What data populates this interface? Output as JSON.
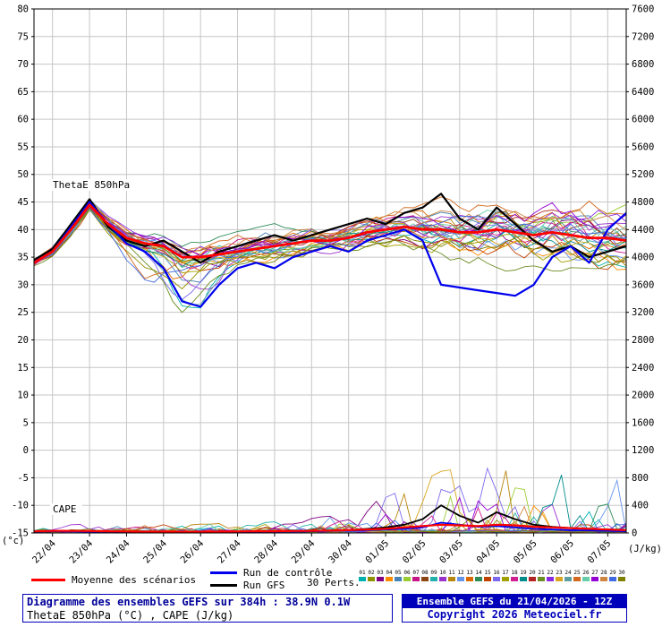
{
  "title_box": {
    "line1": "Diagramme des ensembles GEFS sur 384h : 38.9N 0.1W",
    "line2": "ThetaE 850hPa (°C) , CAPE (J/kg)"
  },
  "info_box": {
    "line1": "Ensemble GEFS du 21/04/2026 - 12Z",
    "line2": "Copyright 2026 Meteociel.fr"
  },
  "legend": {
    "mean_label": "Moyenne des scénarios",
    "control_label": "Run de contrôle",
    "gfs_label": "Run GFS",
    "perts_label": "30 Perts.",
    "member_numbers": [
      "01",
      "02",
      "03",
      "04",
      "05",
      "06",
      "07",
      "08",
      "09",
      "10",
      "11",
      "12",
      "13",
      "14",
      "15",
      "16",
      "17",
      "18",
      "19",
      "20",
      "21",
      "22",
      "23",
      "24",
      "25",
      "26",
      "27",
      "28",
      "29",
      "30"
    ]
  },
  "chart_data": {
    "type": "line",
    "title": "Diagramme des ensembles GEFS sur 384h : 38.9N 0.1W",
    "x_start": "21/04 12Z",
    "x_days_total": 16,
    "time_step_days": 0.5,
    "x_tick_labels": [
      "22/04",
      "23/04",
      "24/04",
      "25/04",
      "26/04",
      "27/04",
      "28/04",
      "29/04",
      "30/04",
      "01/05",
      "02/05",
      "03/05",
      "04/05",
      "05/05",
      "06/05",
      "07/05"
    ],
    "left_axis": {
      "min": -15,
      "max": 80,
      "step": 5,
      "unit": "(°c)",
      "label": "ThetaE 850hPa (°C)"
    },
    "right_axis": {
      "min": 0,
      "max": 7600,
      "step": 400,
      "unit": "(J/kg)",
      "label": "CAPE (J/kg)"
    },
    "annotations": {
      "thetae": "ThetaE 850hPa",
      "cape": "CAPE"
    },
    "grid_color": "#c6c6c6",
    "series_colors": {
      "mean": "#ff0000",
      "control": "#0000ee",
      "gfs": "#000000"
    },
    "series": {
      "mean_thetae": [
        34,
        36,
        40,
        44.5,
        41,
        38.5,
        37.5,
        37,
        35,
        35,
        35.5,
        36,
        36.5,
        37,
        37.5,
        38,
        38,
        38.5,
        39.5,
        40,
        40.5,
        40,
        40,
        39.5,
        39.5,
        40,
        39.5,
        39,
        39.5,
        39,
        38.5,
        38.5,
        38
      ],
      "control_thetae": [
        34,
        36,
        40.5,
        45,
        41,
        37.5,
        36,
        33,
        27,
        26,
        30,
        33,
        34,
        33,
        35,
        36,
        37,
        36,
        38,
        39,
        40,
        38,
        30,
        29.5,
        29,
        28.5,
        28,
        30,
        35,
        37,
        34,
        40,
        43
      ],
      "gfs_thetae": [
        34.5,
        36.5,
        41,
        45.5,
        40.5,
        38,
        37,
        38,
        36,
        34,
        36,
        37,
        38,
        39,
        38,
        39,
        40,
        41,
        42,
        41,
        43,
        44,
        46.5,
        42,
        40,
        44,
        41,
        38,
        36,
        37,
        35,
        36,
        37
      ],
      "mean_cape": [
        25,
        30,
        30,
        28,
        25,
        22,
        20,
        20,
        18,
        18,
        20,
        22,
        25,
        25,
        28,
        30,
        35,
        40,
        50,
        60,
        80,
        100,
        120,
        110,
        100,
        120,
        110,
        90,
        80,
        70,
        60,
        50,
        40
      ],
      "control_cape": [
        20,
        25,
        25,
        22,
        20,
        18,
        15,
        15,
        12,
        12,
        15,
        18,
        20,
        20,
        22,
        25,
        30,
        35,
        40,
        50,
        60,
        80,
        150,
        120,
        90,
        100,
        80,
        60,
        50,
        40,
        35,
        30,
        25
      ],
      "gfs_cape": [
        22,
        28,
        28,
        25,
        22,
        20,
        18,
        18,
        15,
        15,
        18,
        20,
        22,
        25,
        28,
        30,
        35,
        40,
        60,
        80,
        120,
        200,
        400,
        250,
        150,
        300,
        200,
        120,
        90,
        70,
        60,
        50,
        40
      ]
    },
    "ensemble": {
      "count": 30,
      "seed": 20260421,
      "spread_by_day": [
        0.8,
        1.2,
        1.8,
        2.5,
        3.2,
        3.5,
        3.2,
        3.0,
        3.0,
        3.5,
        4.0,
        4.5,
        5.0,
        5.2,
        5.5,
        5.8,
        6.0
      ],
      "cape_env_by_day": [
        40,
        50,
        50,
        50,
        50,
        60,
        70,
        90,
        140,
        250,
        420,
        600,
        650,
        600,
        560,
        600,
        480
      ],
      "colors": [
        "#00b0b0",
        "#909000",
        "#800080",
        "#ff8c00",
        "#4682b4",
        "#9acd32",
        "#c71585",
        "#8b4513",
        "#20b2aa",
        "#9932cc",
        "#b8860b",
        "#6495ed",
        "#dc6900",
        "#2e8b57",
        "#c04000",
        "#7b68ee",
        "#a0a000",
        "#d02090",
        "#008b8b",
        "#b22222",
        "#6b8e23",
        "#8a2be2",
        "#daa520",
        "#5f9ea0",
        "#d2691e",
        "#66cdaa",
        "#9400d3",
        "#cd853f",
        "#4169e1",
        "#808000"
      ]
    }
  }
}
